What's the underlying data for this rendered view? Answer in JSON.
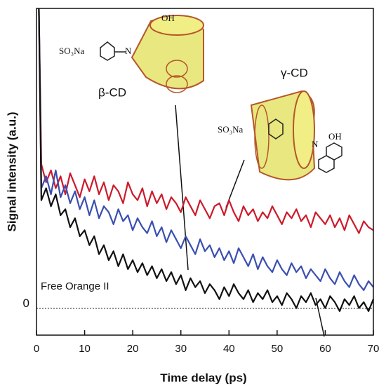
{
  "chart_data": {
    "type": "line",
    "x_label": "Time delay (ps)",
    "y_label": "Signal intensity (a.u.)",
    "x": [
      0.5,
      1,
      2,
      3,
      4,
      5,
      6,
      7,
      8,
      9,
      10,
      11,
      12,
      13,
      14,
      15,
      16,
      17,
      18,
      19,
      20,
      21,
      22,
      23,
      24,
      25,
      26,
      27,
      28,
      29,
      30,
      31,
      32,
      33,
      34,
      35,
      36,
      37,
      38,
      39,
      40,
      41,
      42,
      43,
      44,
      45,
      46,
      47,
      48,
      49,
      50,
      51,
      52,
      53,
      54,
      55,
      56,
      57,
      58,
      59,
      60,
      61,
      62,
      63,
      64,
      65,
      66,
      67,
      68,
      69,
      70
    ],
    "series": [
      {
        "color": "#cc1a2a",
        "values": [
          100,
          48,
          42,
          46,
          40,
          44,
          38,
          45,
          41,
          37,
          43,
          39,
          44,
          38,
          42,
          36,
          41,
          39,
          35,
          42,
          38,
          36,
          40,
          34,
          39,
          35,
          38,
          33,
          37,
          35,
          32,
          37,
          34,
          31,
          36,
          33,
          30,
          34,
          35,
          31,
          36,
          32,
          29,
          34,
          31,
          33,
          29,
          32,
          30,
          34,
          31,
          28,
          32,
          30,
          33,
          29,
          31,
          27,
          32,
          30,
          28,
          31,
          27,
          30,
          26,
          31,
          28,
          25,
          29,
          27,
          26
        ]
      },
      {
        "color": "#3a4fb0",
        "values": [
          100,
          40,
          44,
          38,
          46,
          37,
          41,
          35,
          39,
          33,
          37,
          31,
          36,
          30,
          34,
          32,
          28,
          33,
          29,
          31,
          26,
          30,
          27,
          25,
          29,
          24,
          27,
          22,
          26,
          23,
          20,
          24,
          21,
          18,
          23,
          19,
          21,
          17,
          20,
          16,
          19,
          15,
          20,
          17,
          14,
          18,
          13,
          17,
          14,
          12,
          16,
          13,
          11,
          15,
          12,
          14,
          10,
          13,
          11,
          9,
          13,
          10,
          8,
          12,
          9,
          7,
          11,
          8,
          6,
          9,
          7
        ]
      },
      {
        "color": "#111111",
        "values": [
          100,
          36,
          40,
          34,
          38,
          31,
          33,
          27,
          30,
          24,
          26,
          21,
          24,
          18,
          21,
          16,
          19,
          14,
          18,
          13,
          16,
          12,
          15,
          11,
          14,
          10,
          13,
          9,
          12,
          8,
          11,
          6,
          10,
          7,
          9,
          5,
          8,
          6,
          3,
          7,
          4,
          8,
          5,
          3,
          6,
          2,
          5,
          3,
          6,
          2,
          4,
          1,
          5,
          3,
          0,
          4,
          2,
          5,
          1,
          3,
          0,
          4,
          2,
          -1,
          3,
          1,
          4,
          0,
          2,
          -1,
          3
        ]
      }
    ],
    "xlim": [
      0,
      70
    ],
    "xticks": [
      0,
      10,
      20,
      30,
      40,
      50,
      60,
      70
    ],
    "ylim": [
      -9,
      100
    ],
    "yticks": [
      0
    ],
    "annotations": [
      "Free Orange II",
      "β-CD",
      "γ-CD",
      "SO₃Na",
      "OH",
      "N",
      "SO₃Na",
      "OH",
      "N"
    ]
  }
}
